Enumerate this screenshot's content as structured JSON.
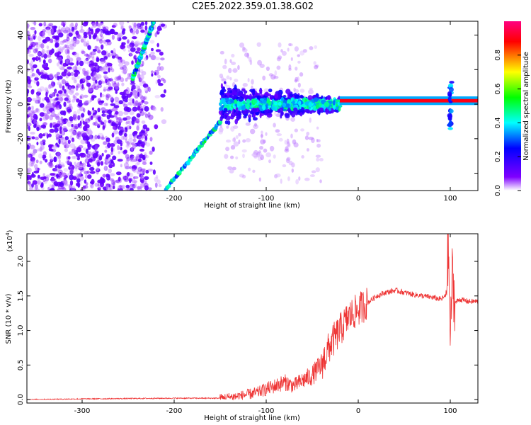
{
  "title": "C2E5.2022.359.01.38.G02",
  "chart_data": [
    {
      "type": "heatmap",
      "xlabel": "Height of straight line (km)",
      "ylabel": "Frequency (Hz)",
      "xlim": [
        -360,
        130
      ],
      "ylim": [
        -50,
        48
      ],
      "xticks": [
        -300,
        -200,
        -100,
        0,
        100
      ],
      "yticks": [
        -40,
        -20,
        0,
        20,
        40
      ],
      "colorbar": {
        "label": "Normalized spectral amplitude",
        "range": [
          0.0,
          1.0
        ],
        "ticks": [
          "0.0",
          "0.2",
          "0.4",
          "0.6",
          "0.8"
        ],
        "colormap": [
          "#ffffff",
          "#7f00ff",
          "#0000ff",
          "#00ffff",
          "#00ff00",
          "#ffff00",
          "#ff0000",
          "#ff0080"
        ]
      },
      "features": {
        "carrier_line": {
          "x_from": -150,
          "x_to": 130,
          "frequency": 2,
          "amplitude": 0.9
        },
        "upper_sweep": {
          "x_from": -245,
          "x_to": -222,
          "freq_from": 15,
          "freq_to": 48
        },
        "lower_sweep": {
          "x_from": -210,
          "x_to": -150,
          "freq_from": -50,
          "freq_to": -10
        },
        "spike_at_x": 100
      }
    },
    {
      "type": "line",
      "xlabel": "Height of straight line (km)",
      "ylabel": "SNR (10 * v/v)",
      "y_multiplier": "(x10",
      "y_multiplier_exp": "4",
      "xlim": [
        -360,
        130
      ],
      "ylim": [
        -0.05,
        2.4
      ],
      "xticks": [
        -300,
        -200,
        -100,
        0,
        100
      ],
      "yticks": [
        "0.0",
        "0.5",
        "1.0",
        "1.5",
        "2.0"
      ],
      "color": "#ee3333",
      "series": [
        {
          "x": [
            -360,
            -300,
            -250,
            -200,
            -150,
            -130,
            -110,
            -100,
            -90,
            -80,
            -70,
            -60,
            -50,
            -40,
            -30,
            -20,
            -10,
            0,
            10,
            20,
            30,
            40,
            50,
            60,
            70,
            80,
            90,
            95,
            98,
            100,
            102,
            105,
            110,
            120,
            130
          ],
          "y": [
            0.0,
            0.01,
            0.015,
            0.02,
            0.02,
            0.05,
            0.1,
            0.15,
            0.2,
            0.25,
            0.2,
            0.28,
            0.35,
            0.5,
            0.8,
            1.0,
            1.2,
            1.3,
            1.4,
            1.5,
            1.55,
            1.58,
            1.55,
            1.52,
            1.5,
            1.48,
            1.45,
            1.5,
            2.2,
            0.8,
            1.8,
            1.4,
            1.45,
            1.42,
            1.42
          ]
        }
      ]
    }
  ]
}
